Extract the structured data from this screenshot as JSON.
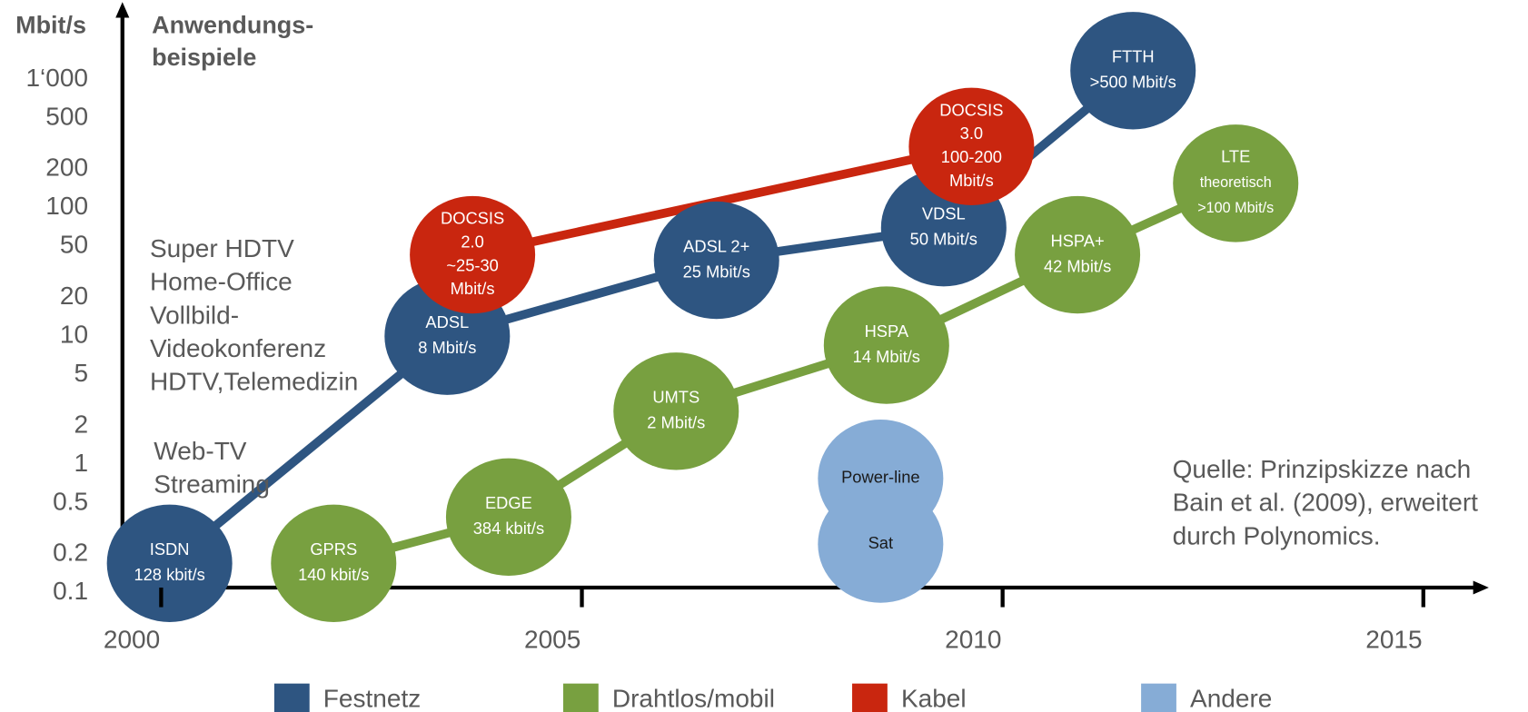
{
  "chart_data": {
    "type": "bubble-timeline",
    "y_unit": "Mbit/s",
    "y_caption": [
      "Anwendungs-",
      "beispiele"
    ],
    "applications": [
      {
        "value": 50,
        "lines": [
          "Super HDTV",
          "Home-Office",
          "Vollbild-",
          "Videokonferenz",
          "HDTV,Telemedizin"
        ]
      },
      {
        "value": 1,
        "lines": [
          "Web-TV",
          "Streaming"
        ]
      }
    ],
    "source": [
      "Quelle: Prinzipskizze nach",
      "Bain et al. (2009), erweitert",
      "durch Polynomics."
    ],
    "log_y": true,
    "xlim": [
      1999.54,
      2015.72
    ],
    "ylim": [
      0.11,
      3800
    ],
    "xticks": [
      2000,
      2005,
      2010,
      2015
    ],
    "yticks": [
      0.1,
      0.2,
      0.5,
      1,
      2,
      5,
      10,
      20,
      50,
      100,
      200,
      500,
      {
        "value": 1000,
        "label": "1‘000"
      }
    ],
    "series": [
      {
        "name": "Festnetz",
        "color": "#2e5581",
        "connected": true,
        "points": [
          {
            "x": 2000.1,
            "y": 0.17,
            "label": [
              "ISDN",
              "128 kbit/s"
            ]
          },
          {
            "x": 2003.4,
            "y": 10,
            "label": [
              "ADSL",
              "8 Mbit/s"
            ]
          },
          {
            "x": 2006.6,
            "y": 39,
            "label": [
              "ADSL 2+",
              "25 Mbit/s"
            ]
          },
          {
            "x": 2009.3,
            "y": 70,
            "label": [
              "VDSL",
              "50 Mbit/s"
            ]
          },
          {
            "x": 2011.55,
            "y": 1170,
            "label": [
              "FTTH",
              ">500 Mbit/s"
            ]
          }
        ]
      },
      {
        "name": "Drahtlos/mobil",
        "color": "#78a040",
        "connected": true,
        "points": [
          {
            "x": 2002.05,
            "y": 0.17,
            "label": [
              "GPRS",
              "140 kbit/s"
            ]
          },
          {
            "x": 2004.13,
            "y": 0.39,
            "label": [
              "EDGE",
              "384 kbit/s"
            ]
          },
          {
            "x": 2006.12,
            "y": 2.6,
            "label": [
              "UMTS",
              "2 Mbit/s"
            ]
          },
          {
            "x": 2008.62,
            "y": 8.5,
            "label": [
              "HSPA",
              "14 Mbit/s"
            ]
          },
          {
            "x": 2010.89,
            "y": 43,
            "label": [
              "HSPA+",
              "42 Mbit/s"
            ]
          },
          {
            "x": 2012.77,
            "y": 155,
            "label": [
              "LTE",
              "theoretisch",
              ">100 Mbit/s"
            ]
          }
        ]
      },
      {
        "name": "Kabel",
        "color": "#c9260f",
        "connected": true,
        "points": [
          {
            "x": 2003.7,
            "y": 43,
            "label": [
              "DOCSIS",
              "2.0",
              "~25-30",
              "Mbit/s"
            ]
          },
          {
            "x": 2009.63,
            "y": 300,
            "label": [
              "DOCSIS",
              "3.0",
              "100-200",
              "Mbit/s"
            ]
          }
        ]
      },
      {
        "name": "Andere",
        "color": "#86acd6",
        "connected": false,
        "points": [
          {
            "x": 2008.55,
            "y": 0.78,
            "label": [
              "Power-line"
            ]
          },
          {
            "x": 2008.55,
            "y": 0.24,
            "label": [
              "Sat"
            ]
          }
        ]
      }
    ]
  }
}
